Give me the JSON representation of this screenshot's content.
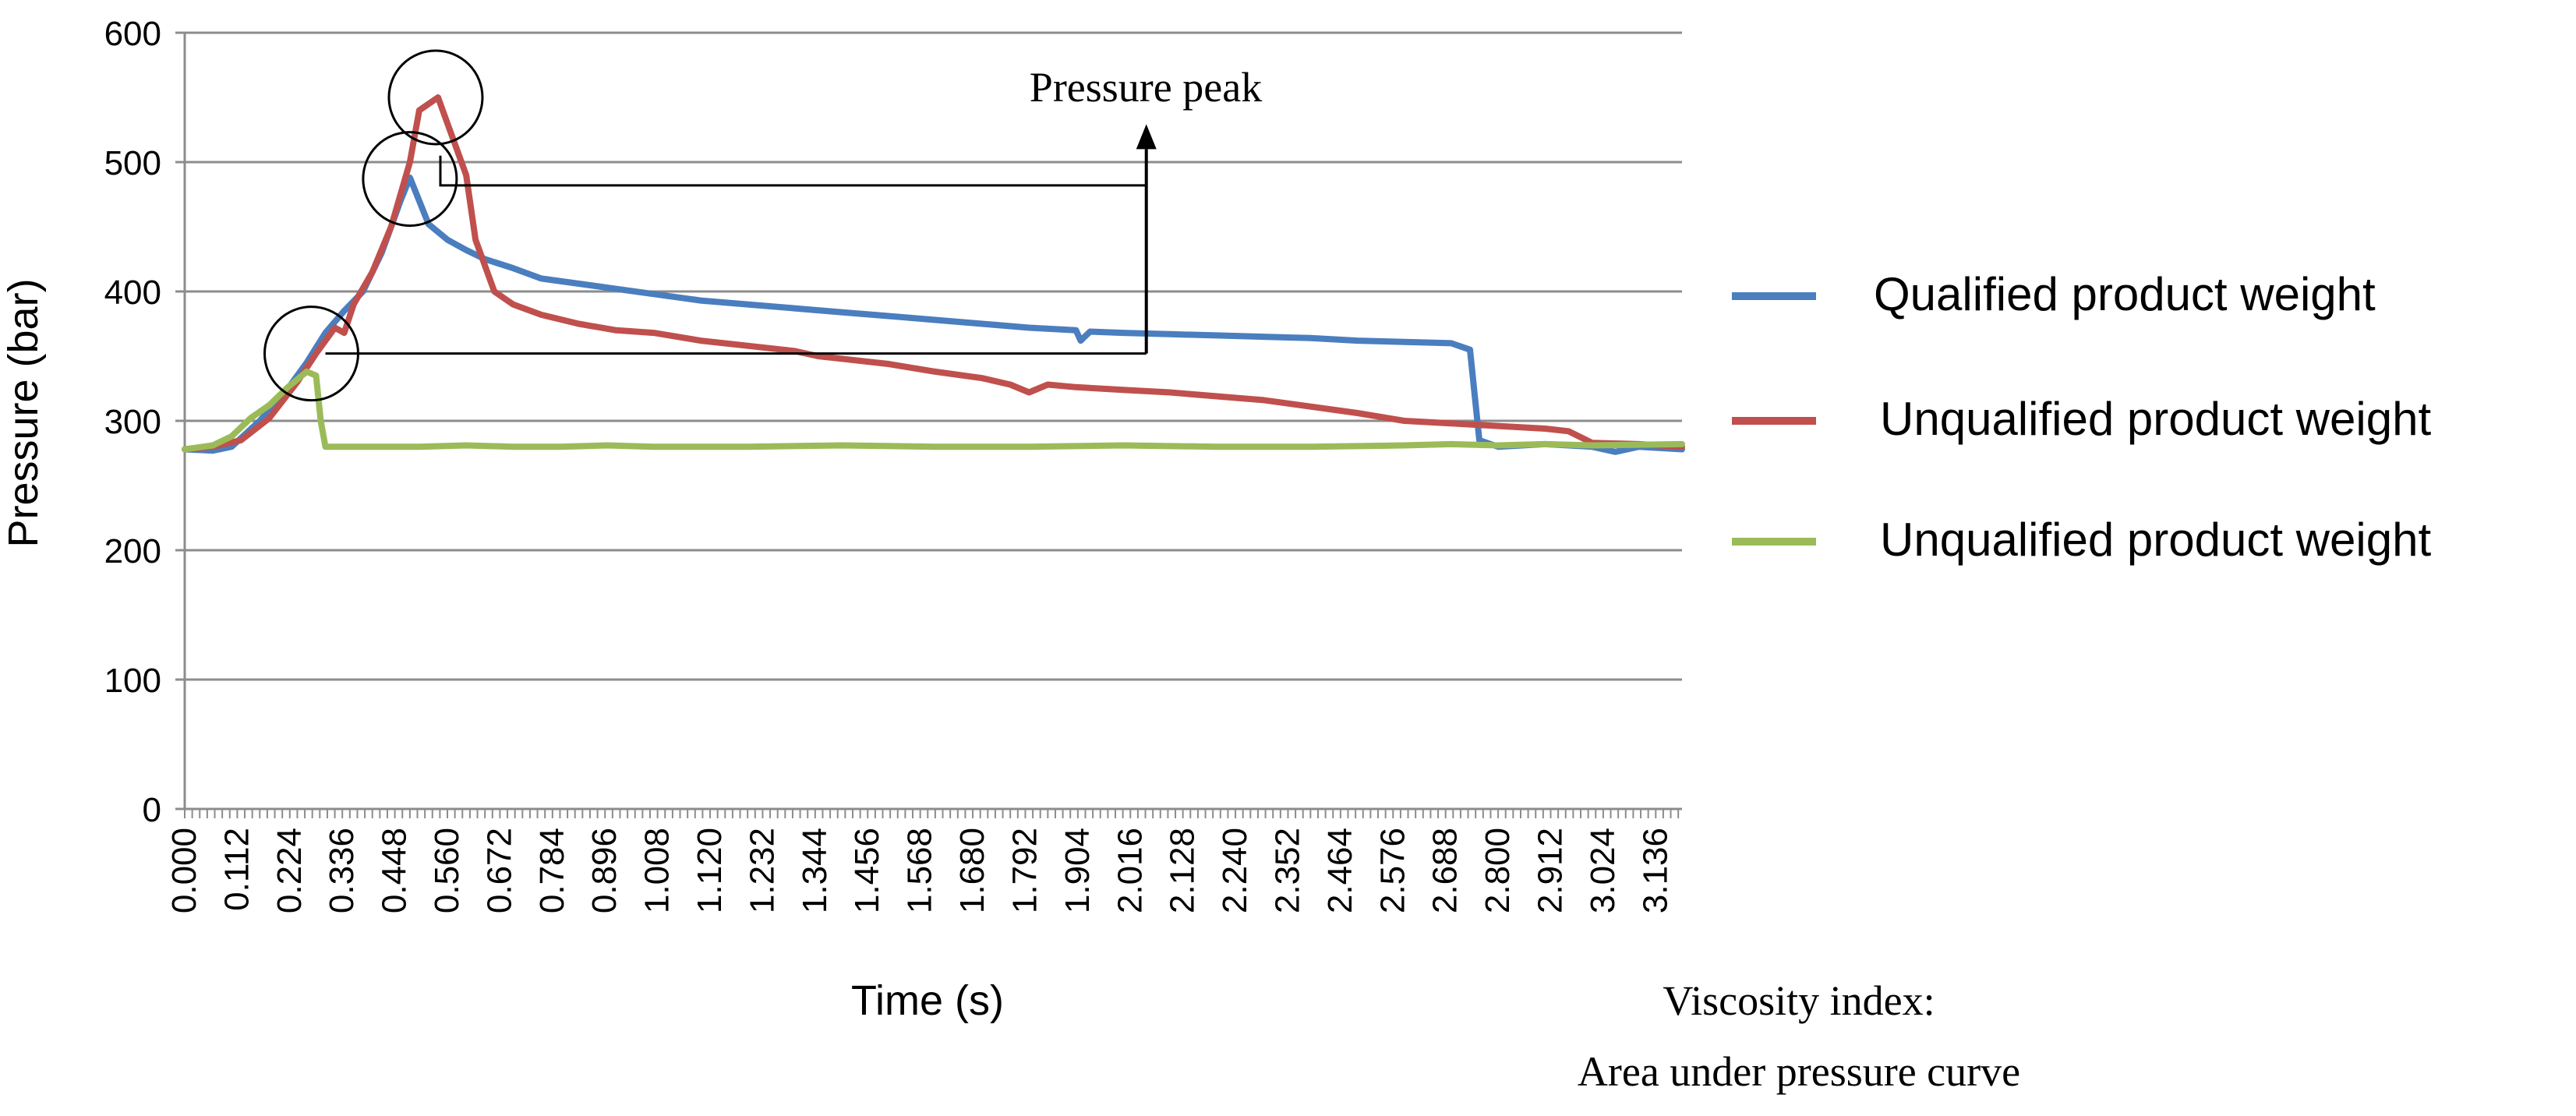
{
  "chart_data": {
    "type": "line",
    "xlabel": "Time (s)",
    "ylabel": "Pressure (bar)",
    "ylim": [
      0,
      600
    ],
    "xlim": [
      0,
      3.192
    ],
    "yticks": [
      0,
      100,
      200,
      300,
      400,
      500,
      600
    ],
    "xtick_labels": [
      "0.000",
      "0.112",
      "0.224",
      "0.336",
      "0.448",
      "0.560",
      "0.672",
      "0.784",
      "0.896",
      "1.008",
      "1.120",
      "1.232",
      "1.344",
      "1.456",
      "1.568",
      "1.680",
      "1.792",
      "1.904",
      "2.016",
      "2.128",
      "2.240",
      "2.352",
      "2.464",
      "2.576",
      "2.688",
      "2.800",
      "2.912",
      "3.024",
      "3.136"
    ],
    "grid": "horizontal",
    "legend_position": "right",
    "series": [
      {
        "name": "Qualified product weight",
        "color": "#4a7ebf",
        "points": [
          [
            0,
            278
          ],
          [
            0.06,
            277
          ],
          [
            0.1,
            280
          ],
          [
            0.16,
            300
          ],
          [
            0.22,
            325
          ],
          [
            0.26,
            345
          ],
          [
            0.3,
            368
          ],
          [
            0.34,
            385
          ],
          [
            0.38,
            400
          ],
          [
            0.42,
            430
          ],
          [
            0.46,
            470
          ],
          [
            0.48,
            488
          ],
          [
            0.5,
            470
          ],
          [
            0.52,
            452
          ],
          [
            0.56,
            440
          ],
          [
            0.6,
            432
          ],
          [
            0.64,
            425
          ],
          [
            0.7,
            418
          ],
          [
            0.76,
            410
          ],
          [
            0.84,
            406
          ],
          [
            0.92,
            402
          ],
          [
            1.0,
            398
          ],
          [
            1.1,
            393
          ],
          [
            1.2,
            390
          ],
          [
            1.3,
            387
          ],
          [
            1.4,
            384
          ],
          [
            1.5,
            381
          ],
          [
            1.6,
            378
          ],
          [
            1.7,
            375
          ],
          [
            1.8,
            372
          ],
          [
            1.9,
            370
          ],
          [
            1.91,
            362
          ],
          [
            1.93,
            369
          ],
          [
            2.0,
            368
          ],
          [
            2.1,
            367
          ],
          [
            2.2,
            366
          ],
          [
            2.3,
            365
          ],
          [
            2.4,
            364
          ],
          [
            2.5,
            362
          ],
          [
            2.6,
            361
          ],
          [
            2.7,
            360
          ],
          [
            2.74,
            355
          ],
          [
            2.76,
            285
          ],
          [
            2.8,
            280
          ],
          [
            2.9,
            282
          ],
          [
            3.0,
            280
          ],
          [
            3.05,
            276
          ],
          [
            3.1,
            280
          ],
          [
            3.192,
            278
          ]
        ]
      },
      {
        "name": "Unqualified product weight",
        "color": "#c0504d",
        "points": [
          [
            0,
            278
          ],
          [
            0.06,
            280
          ],
          [
            0.12,
            285
          ],
          [
            0.18,
            302
          ],
          [
            0.24,
            330
          ],
          [
            0.28,
            352
          ],
          [
            0.32,
            372
          ],
          [
            0.34,
            368
          ],
          [
            0.36,
            390
          ],
          [
            0.4,
            415
          ],
          [
            0.44,
            450
          ],
          [
            0.48,
            500
          ],
          [
            0.5,
            540
          ],
          [
            0.52,
            545
          ],
          [
            0.54,
            550
          ],
          [
            0.56,
            530
          ],
          [
            0.6,
            490
          ],
          [
            0.62,
            440
          ],
          [
            0.66,
            400
          ],
          [
            0.7,
            390
          ],
          [
            0.76,
            382
          ],
          [
            0.84,
            375
          ],
          [
            0.92,
            370
          ],
          [
            1.0,
            368
          ],
          [
            1.1,
            362
          ],
          [
            1.2,
            358
          ],
          [
            1.3,
            354
          ],
          [
            1.35,
            350
          ],
          [
            1.4,
            348
          ],
          [
            1.5,
            344
          ],
          [
            1.6,
            338
          ],
          [
            1.7,
            333
          ],
          [
            1.76,
            328
          ],
          [
            1.8,
            322
          ],
          [
            1.84,
            328
          ],
          [
            1.9,
            326
          ],
          [
            2.0,
            324
          ],
          [
            2.1,
            322
          ],
          [
            2.2,
            319
          ],
          [
            2.3,
            316
          ],
          [
            2.4,
            311
          ],
          [
            2.5,
            306
          ],
          [
            2.6,
            300
          ],
          [
            2.7,
            298
          ],
          [
            2.8,
            296
          ],
          [
            2.9,
            294
          ],
          [
            2.95,
            292
          ],
          [
            3.0,
            283
          ],
          [
            3.1,
            282
          ],
          [
            3.192,
            280
          ]
        ]
      },
      {
        "name": "Unqualified product weight",
        "color": "#9bbb59",
        "points": [
          [
            0,
            278
          ],
          [
            0.06,
            281
          ],
          [
            0.1,
            288
          ],
          [
            0.14,
            302
          ],
          [
            0.18,
            312
          ],
          [
            0.22,
            326
          ],
          [
            0.26,
            338
          ],
          [
            0.28,
            335
          ],
          [
            0.29,
            300
          ],
          [
            0.3,
            280
          ],
          [
            0.4,
            280
          ],
          [
            0.5,
            280
          ],
          [
            0.6,
            281
          ],
          [
            0.7,
            280
          ],
          [
            0.8,
            280
          ],
          [
            0.9,
            281
          ],
          [
            1.0,
            280
          ],
          [
            1.2,
            280
          ],
          [
            1.4,
            281
          ],
          [
            1.6,
            280
          ],
          [
            1.8,
            280
          ],
          [
            2.0,
            281
          ],
          [
            2.2,
            280
          ],
          [
            2.4,
            280
          ],
          [
            2.6,
            281
          ],
          [
            2.7,
            282
          ],
          [
            2.8,
            281
          ],
          [
            2.9,
            282
          ],
          [
            3.0,
            281
          ],
          [
            3.192,
            282
          ]
        ]
      }
    ],
    "annotations": {
      "pressure_peak": "Pressure peak",
      "viscosity_line1": "Viscosity index:",
      "viscosity_line2": "Area under pressure curve"
    }
  }
}
